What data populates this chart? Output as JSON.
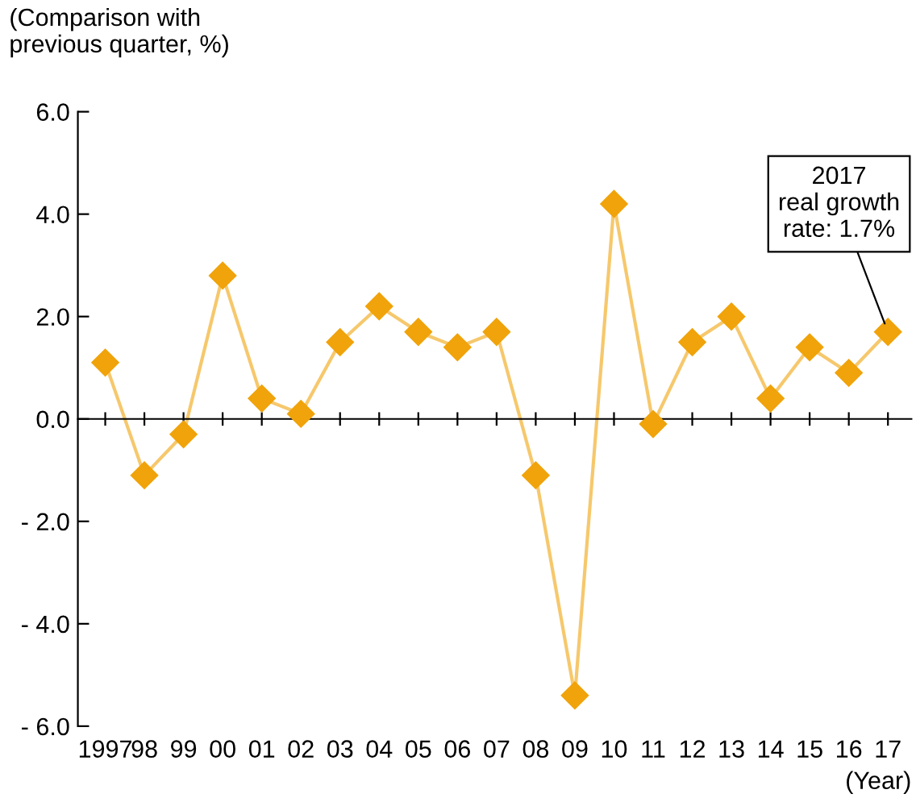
{
  "chart_data": {
    "type": "line",
    "categories": [
      "1997",
      "98",
      "99",
      "00",
      "01",
      "02",
      "03",
      "04",
      "05",
      "06",
      "07",
      "08",
      "09",
      "10",
      "11",
      "12",
      "13",
      "14",
      "15",
      "16",
      "17"
    ],
    "series": [
      {
        "color": "#f0a30a",
        "values": [
          1.1,
          -1.1,
          -0.3,
          2.8,
          0.4,
          0.1,
          1.5,
          2.2,
          1.7,
          1.4,
          1.7,
          -1.1,
          -5.4,
          4.2,
          -0.1,
          1.5,
          2.0,
          0.4,
          1.4,
          0.9,
          1.7
        ]
      }
    ],
    "ylabel": "(Comparison with\nprevious quarter, %)",
    "xlabel": "(Year)",
    "ylim": [
      -6,
      6
    ],
    "yticks": [
      {
        "value": -6,
        "label": "- 6.0"
      },
      {
        "value": -4,
        "label": "- 4.0"
      },
      {
        "value": -2,
        "label": "- 2.0"
      },
      {
        "value": 0,
        "label": "0.0"
      },
      {
        "value": 2,
        "label": "2.0"
      },
      {
        "value": 4,
        "label": "4.0"
      },
      {
        "value": 6,
        "label": "6.0"
      }
    ],
    "annotations": [
      {
        "text": "2017\nreal growth\nrate: 1.7%",
        "x": "17",
        "y": 1.7
      }
    ],
    "marker": "diamond",
    "line_style": "solid",
    "legend": false
  }
}
